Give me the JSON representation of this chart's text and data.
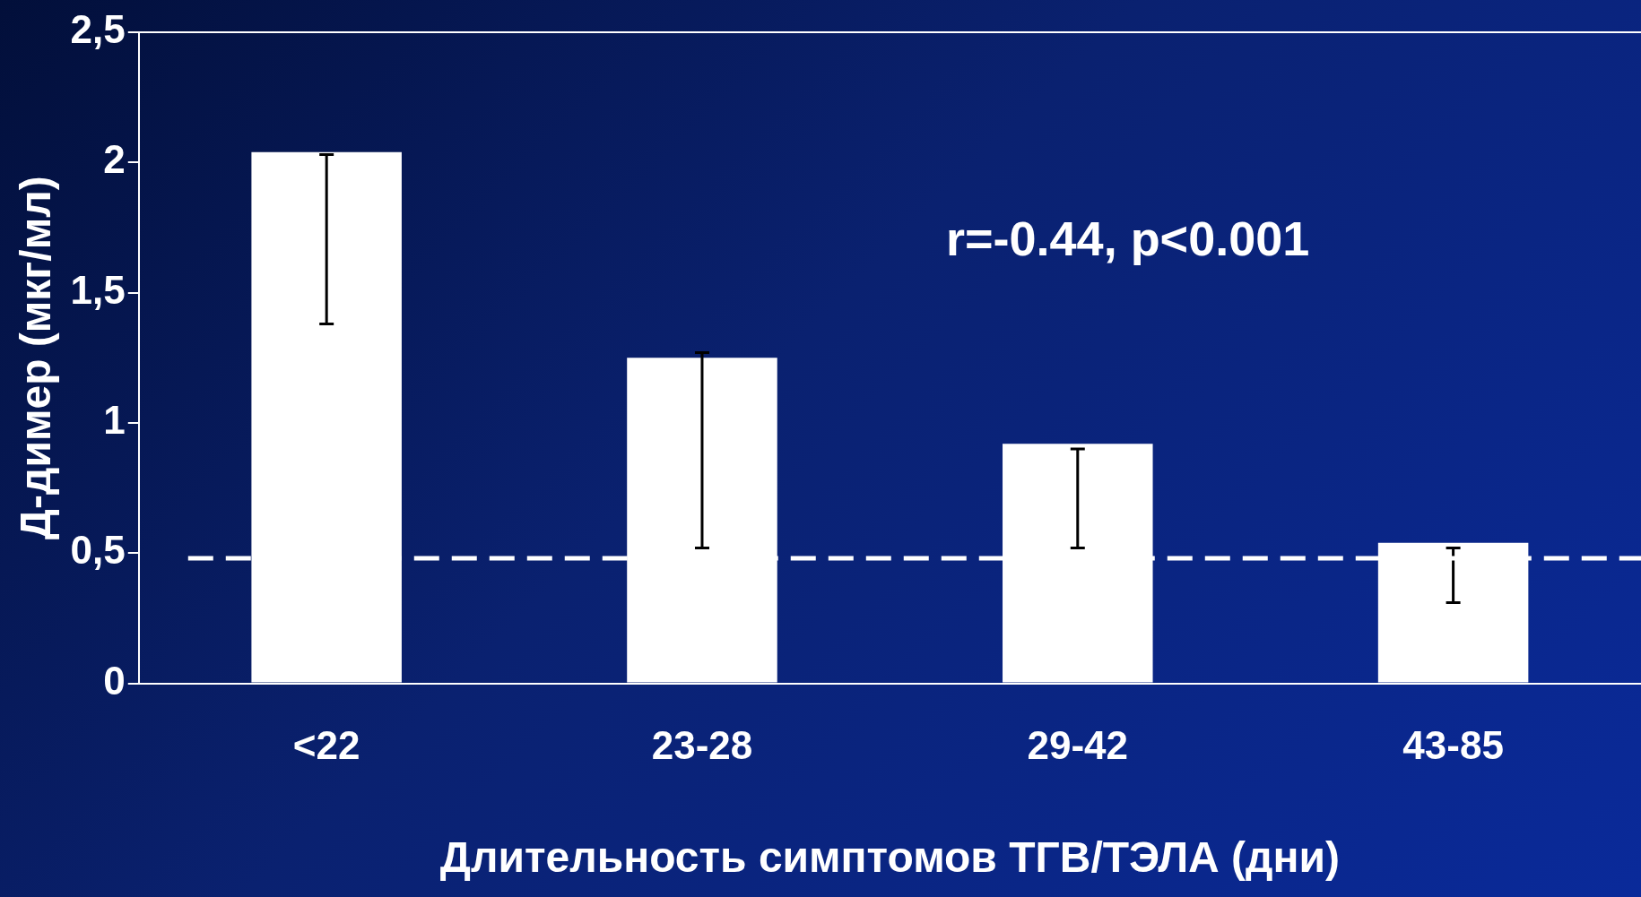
{
  "chart_data": {
    "type": "bar",
    "categories": [
      "<22",
      "23-28",
      "29-42",
      "43-85"
    ],
    "values": [
      2.04,
      1.25,
      0.92,
      0.54
    ],
    "errors": [
      [
        1.38,
        2.03
      ],
      [
        0.52,
        1.27
      ],
      [
        0.52,
        0.9
      ],
      [
        0.31,
        0.52
      ]
    ],
    "color": "#ffffff",
    "xlabel": "Длительность симптомов ТГВ/ТЭЛА (дни)",
    "ylabel": "Д-димер (мкг/мл)",
    "ylim": [
      0,
      2.5
    ],
    "yticks": [
      {
        "value": 0,
        "label": "0"
      },
      {
        "value": 0.5,
        "label": "0,5"
      },
      {
        "value": 1,
        "label": "1"
      },
      {
        "value": 1.5,
        "label": "1,5"
      },
      {
        "value": 2,
        "label": "2"
      },
      {
        "value": 2.5,
        "label": "2,5"
      }
    ],
    "ref_lines": [
      {
        "axis": "y",
        "value": 0.48,
        "color": "#ffffff",
        "line_style": "dashed"
      }
    ],
    "annotations": [
      "r=-0.44, p<0.001"
    ],
    "legend": false,
    "grid": false
  }
}
